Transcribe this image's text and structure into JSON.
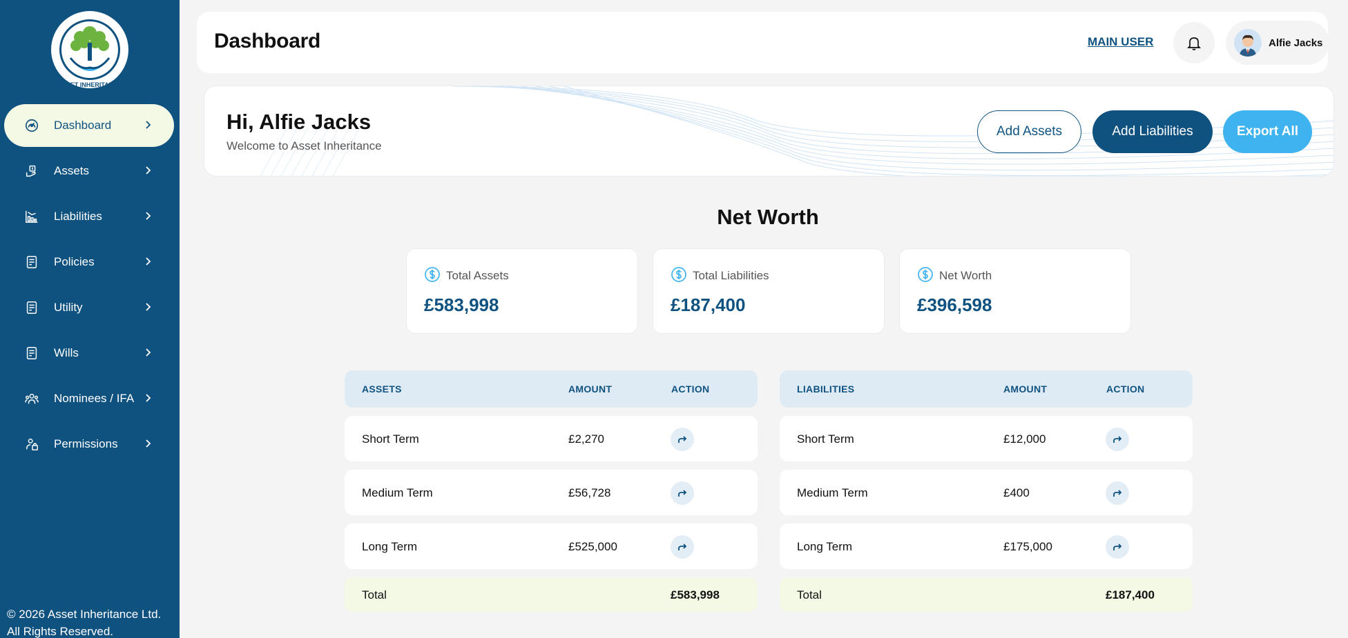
{
  "brand": {
    "logo_text": "ASSET INHERITANCE",
    "primary_color": "#0f5280",
    "accent_color": "#3fb2f0",
    "highlight_color": "#f4f9e6"
  },
  "sidebar": {
    "items": [
      {
        "label": "Dashboard",
        "icon": "gauge-icon",
        "active": true
      },
      {
        "label": "Assets",
        "icon": "assets-hand-icon"
      },
      {
        "label": "Liabilities",
        "icon": "chart-down-icon"
      },
      {
        "label": "Policies",
        "icon": "document-icon"
      },
      {
        "label": "Utility",
        "icon": "document-icon"
      },
      {
        "label": "Wills",
        "icon": "document-icon"
      },
      {
        "label": "Nominees / IFA",
        "icon": "users-icon"
      },
      {
        "label": "Permissions",
        "icon": "lock-user-icon"
      }
    ],
    "footer": "© 2026 Asset Inheritance Ltd. All Rights Reserved."
  },
  "header": {
    "title": "Dashboard",
    "main_user_link": "MAIN USER",
    "user_name": "Alfie Jacks"
  },
  "welcome": {
    "greeting": "Hi, Alfie Jacks",
    "subtitle": "Welcome to Asset Inheritance",
    "buttons": {
      "add_assets": "Add Assets",
      "add_liabilities": "Add Liabilities",
      "export_all": "Export All"
    }
  },
  "net_worth": {
    "title": "Net Worth",
    "cards": [
      {
        "label": "Total Assets",
        "value": "£583,998"
      },
      {
        "label": "Total Liabilities",
        "value": "£187,400"
      },
      {
        "label": "Net Worth",
        "value": "£396,598"
      }
    ]
  },
  "assets_table": {
    "headers": {
      "name": "ASSETS",
      "amount": "AMOUNT",
      "action": "ACTION"
    },
    "rows": [
      {
        "name": "Short Term",
        "amount": "£2,270"
      },
      {
        "name": "Medium Term",
        "amount": "£56,728"
      },
      {
        "name": "Long Term",
        "amount": "£525,000"
      }
    ],
    "total": {
      "label": "Total",
      "amount": "£583,998"
    }
  },
  "liabilities_table": {
    "headers": {
      "name": "LIABILITIES",
      "amount": "AMOUNT",
      "action": "ACTION"
    },
    "rows": [
      {
        "name": "Short Term",
        "amount": "£12,000"
      },
      {
        "name": "Medium Term",
        "amount": "£400"
      },
      {
        "name": "Long Term",
        "amount": "£175,000"
      }
    ],
    "total": {
      "label": "Total",
      "amount": "£187,400"
    }
  }
}
